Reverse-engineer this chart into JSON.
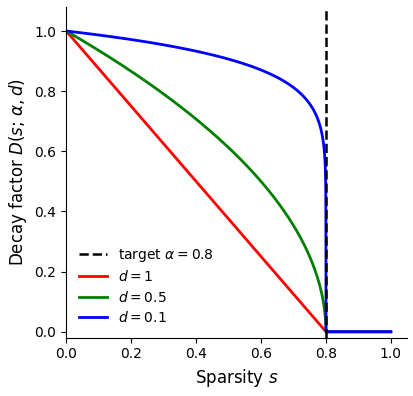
{
  "alpha": 0.8,
  "d_values": [
    1,
    0.5,
    0.1
  ],
  "colors": [
    "red",
    "green",
    "blue"
  ],
  "labels": [
    "$d = 1$",
    "$d = 0.5$",
    "$d = 0.1$"
  ],
  "dashed_label": "target $\\alpha = 0.8$",
  "xlabel": "Sparsity $s$",
  "ylabel": "Decay factor $D(s;\\, \\alpha, d)$",
  "xlim": [
    0.0,
    1.05
  ],
  "ylim": [
    -0.02,
    1.08
  ],
  "n_points": 2000,
  "figsize": [
    4.14,
    3.96
  ],
  "dpi": 100,
  "xticks": [
    0.0,
    0.2,
    0.4,
    0.6,
    0.8,
    1.0
  ],
  "yticks": [
    0.0,
    0.2,
    0.4,
    0.6,
    0.8,
    1.0
  ],
  "line_width": 2.0,
  "legend_fontsize": 10,
  "axis_fontsize": 12,
  "tick_fontsize": 10
}
